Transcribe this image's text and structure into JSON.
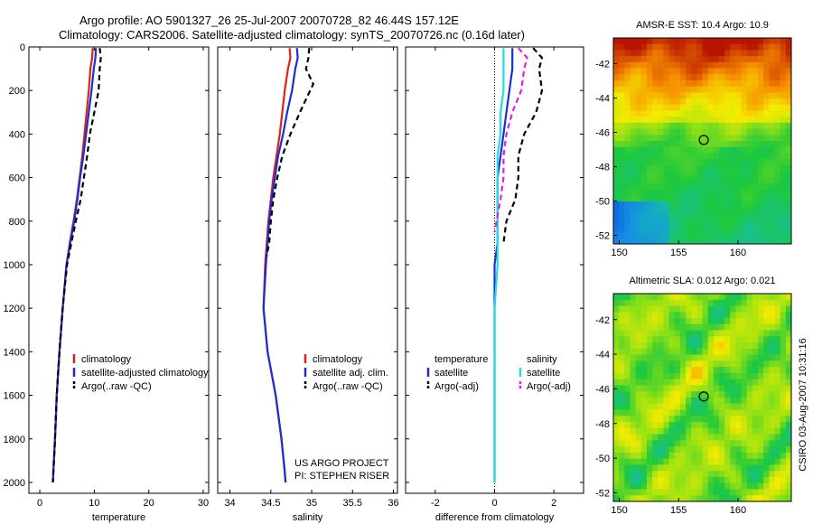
{
  "title": {
    "line1": "Argo profile: AO 5901327_26 25-Jul-2007 20070728_82 46.44S 157.12E",
    "line2": "Climatology: CARS2006. Satellite-adjusted climatology: synTS_20070726.nc (0.16d later)"
  },
  "side_label": "CSIRO 03-Aug-2007 10:31:16",
  "colors": {
    "climatology": "#e0201a",
    "satellite": "#1a2fd6",
    "argo": "#000000",
    "sal_satellite": "#22dde0",
    "sal_argo": "#e020e0"
  },
  "chart_data": [
    {
      "type": "line",
      "id": "temperature_panel",
      "xlabel": "temperature",
      "ylabel": "",
      "xlim": [
        -2,
        31
      ],
      "ylim": [
        2050,
        0
      ],
      "y_reversed": true,
      "xticks": [
        0,
        10,
        20,
        30
      ],
      "xtick_labels": [
        "0",
        "10",
        "20",
        "30"
      ],
      "yticks": [
        0,
        200,
        400,
        600,
        800,
        1000,
        1200,
        1400,
        1600,
        1800,
        2000
      ],
      "ytick_labels": [
        "0",
        "200",
        "400",
        "600",
        "800",
        "1000",
        "1200",
        "1400",
        "1600",
        "1800",
        "2000"
      ],
      "legend": [
        "climatology",
        "satellite-adjusted climatology",
        "Argo(..raw -QC)"
      ],
      "legend_position": "lower-right",
      "series": [
        {
          "name": "climatology",
          "color_key": "climatology",
          "style": "solid",
          "x": [
            9.7,
            9.6,
            9.3,
            9.0,
            8.6,
            8.2,
            7.8,
            7.3,
            6.8,
            6.2,
            5.5,
            4.9,
            4.2,
            3.6,
            3.1,
            2.8,
            2.5,
            2.4
          ],
          "y": [
            5,
            50,
            100,
            200,
            300,
            400,
            500,
            600,
            700,
            800,
            900,
            1000,
            1200,
            1400,
            1600,
            1800,
            1950,
            2000
          ]
        },
        {
          "name": "satellite-adjusted climatology",
          "color_key": "satellite",
          "style": "solid",
          "x": [
            10.3,
            10.2,
            9.9,
            9.5,
            9.0,
            8.5,
            8.0,
            7.4,
            6.9,
            6.3,
            5.6,
            4.9,
            4.2,
            3.6,
            3.1,
            2.8,
            2.5,
            2.4
          ],
          "y": [
            5,
            50,
            100,
            200,
            300,
            400,
            500,
            600,
            700,
            800,
            900,
            1000,
            1200,
            1400,
            1600,
            1800,
            1950,
            2000
          ]
        },
        {
          "name": "Argo(..raw -QC)",
          "color_key": "argo",
          "style": "dashed",
          "x": [
            11.0,
            11.2,
            11.0,
            10.8,
            10.0,
            9.2,
            8.7,
            8.1,
            7.5,
            6.6,
            5.8,
            5.0,
            4.2,
            3.6,
            3.1,
            2.8,
            2.5,
            2.4
          ],
          "y": [
            5,
            50,
            100,
            200,
            300,
            400,
            500,
            600,
            700,
            800,
            900,
            1000,
            1200,
            1400,
            1600,
            1800,
            1950,
            2000
          ]
        }
      ]
    },
    {
      "type": "line",
      "id": "salinity_panel",
      "xlabel": "salinity",
      "ylabel": "",
      "xlim": [
        33.85,
        36.05
      ],
      "ylim": [
        2050,
        0
      ],
      "y_reversed": true,
      "xticks": [
        34,
        34.5,
        35,
        35.5,
        36
      ],
      "xtick_labels": [
        "34",
        "34.5",
        "35",
        "35.5",
        "36"
      ],
      "legend": [
        "climatology",
        "satellite adj. clim.",
        "Argo(..raw -QC)"
      ],
      "legend_position": "lower-right",
      "annotation": [
        "US ARGO PROJECT",
        "PI: STEPHEN RISER"
      ],
      "series": [
        {
          "name": "climatology",
          "color_key": "climatology",
          "style": "solid",
          "x": [
            34.73,
            34.74,
            34.71,
            34.67,
            34.64,
            34.61,
            34.57,
            34.53,
            34.5,
            34.47,
            34.45,
            34.43,
            34.41,
            34.46,
            34.56,
            34.63,
            34.67,
            34.68
          ],
          "y": [
            5,
            50,
            100,
            200,
            300,
            400,
            500,
            600,
            700,
            800,
            900,
            1000,
            1200,
            1400,
            1600,
            1800,
            1950,
            2000
          ]
        },
        {
          "name": "satellite adj. clim.",
          "color_key": "satellite",
          "style": "solid",
          "x": [
            34.82,
            34.83,
            34.8,
            34.76,
            34.7,
            34.65,
            34.59,
            34.55,
            34.51,
            34.48,
            34.46,
            34.44,
            34.41,
            34.46,
            34.56,
            34.63,
            34.67,
            34.68
          ],
          "y": [
            5,
            50,
            100,
            200,
            300,
            400,
            500,
            600,
            700,
            800,
            900,
            1000,
            1200,
            1400,
            1600,
            1800,
            1950,
            2000
          ]
        },
        {
          "name": "Argo(..raw -QC)",
          "color_key": "argo",
          "style": "dashed",
          "x": [
            34.97,
            34.96,
            34.93,
            35.02,
            34.88,
            34.74,
            34.64,
            34.58,
            34.53,
            34.5,
            34.48,
            34.45
          ],
          "y": [
            5,
            50,
            100,
            170,
            280,
            400,
            500,
            600,
            700,
            800,
            900,
            960
          ]
        }
      ]
    },
    {
      "type": "line",
      "id": "difference_panel",
      "xlabel": "difference from climatology",
      "ylabel": "",
      "xlim": [
        -3,
        3
      ],
      "ylim": [
        2050,
        0
      ],
      "y_reversed": true,
      "xticks": [
        -2,
        0,
        2
      ],
      "xtick_labels": [
        "-2",
        "0",
        "2"
      ],
      "legend_columns": [
        {
          "header": "temperature",
          "entries": [
            "satellite",
            "Argo(-adj)"
          ]
        },
        {
          "header": "salinity",
          "entries": [
            "satellite",
            "Argo(-adj)"
          ]
        }
      ],
      "legend_position": "lower-middle",
      "series": [
        {
          "name": "temperature satellite",
          "color_key": "satellite",
          "style": "solid",
          "x": [
            0.6,
            0.6,
            0.6,
            0.5,
            0.4,
            0.3,
            0.2,
            0.1,
            0.1,
            0.1,
            0.1,
            0.0,
            0.0,
            0.0,
            0.0,
            0.0,
            0.0
          ],
          "y": [
            5,
            50,
            100,
            200,
            300,
            400,
            500,
            600,
            700,
            800,
            900,
            1000,
            1200,
            1400,
            1600,
            1800,
            2000
          ]
        },
        {
          "name": "temperature Argo(-adj)",
          "color_key": "argo",
          "style": "dashed",
          "x": [
            1.3,
            1.6,
            1.5,
            1.6,
            1.4,
            1.0,
            0.8,
            0.8,
            0.7,
            0.4,
            0.3
          ],
          "y": [
            5,
            50,
            100,
            200,
            300,
            400,
            500,
            600,
            700,
            800,
            900
          ]
        },
        {
          "name": "salinity satellite",
          "color_key": "sal_satellite",
          "style": "solid",
          "x": [
            0.3,
            0.3,
            0.3,
            0.3,
            0.2,
            0.2,
            0.1,
            0.1,
            0.1,
            0.1,
            0.1,
            0.1,
            0.0,
            0.0,
            0.0,
            0.0,
            0.0
          ],
          "y": [
            5,
            50,
            100,
            200,
            300,
            400,
            500,
            600,
            700,
            800,
            900,
            1000,
            1200,
            1400,
            1600,
            1800,
            2000
          ]
        },
        {
          "name": "salinity Argo(-adj)",
          "color_key": "sal_argo",
          "style": "dashed",
          "x": [
            0.8,
            1.1,
            1.0,
            0.9,
            0.6,
            0.4,
            0.3,
            0.3,
            0.2,
            0.0
          ],
          "y": [
            5,
            50,
            100,
            200,
            300,
            400,
            500,
            600,
            700,
            850
          ]
        }
      ]
    },
    {
      "type": "heatmap",
      "id": "sst_map",
      "title": "AMSR-E SST: 10.4 Argo: 10.9",
      "xlim": [
        149.5,
        164.5
      ],
      "ylim": [
        -52.5,
        -40.5
      ],
      "xticks": [
        150,
        155,
        160
      ],
      "xtick_labels": [
        "150",
        "155",
        "160"
      ],
      "yticks": [
        -42,
        -44,
        -46,
        -48,
        -50,
        -52
      ],
      "ytick_labels": [
        "-42",
        "-44",
        "-46",
        "-48",
        "-50",
        "-52"
      ],
      "marker": {
        "lon": 157.12,
        "lat": -46.44
      }
    },
    {
      "type": "heatmap",
      "id": "sla_map",
      "title": "Altimetric SLA: 0.012 Argo: 0.021",
      "xlim": [
        149.5,
        164.5
      ],
      "ylim": [
        -52.5,
        -40.5
      ],
      "xticks": [
        150,
        155,
        160
      ],
      "xtick_labels": [
        "150",
        "155",
        "160"
      ],
      "yticks": [
        -42,
        -44,
        -46,
        -48,
        -50,
        -52
      ],
      "ytick_labels": [
        "-42",
        "-44",
        "-46",
        "-48",
        "-50",
        "-52"
      ],
      "marker": {
        "lon": 157.12,
        "lat": -46.44
      }
    }
  ]
}
